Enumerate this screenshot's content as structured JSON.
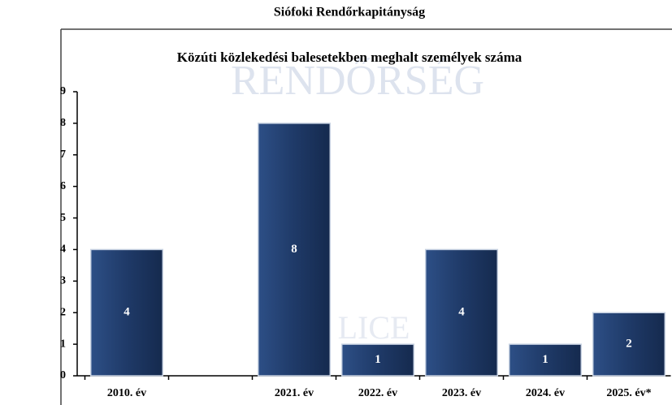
{
  "header": "Siófoki Rendőrkapitányság",
  "chart_data": {
    "type": "bar",
    "title": "Közúti közlekedési balesetekben meghalt személyek száma",
    "watermark": [
      "RENDŐRSÉG",
      "LICE"
    ],
    "categories": [
      "2010. év",
      null,
      "2021. év",
      "2022. év",
      "2023. év",
      "2024. év",
      "2025. év*"
    ],
    "values": [
      4,
      null,
      8,
      1,
      4,
      1,
      2
    ],
    "color": "#1f3a68",
    "ylim": [
      0,
      9
    ],
    "yticks": [
      0,
      1,
      2,
      3,
      4,
      5,
      6,
      7,
      8,
      9
    ],
    "grid": false
  }
}
